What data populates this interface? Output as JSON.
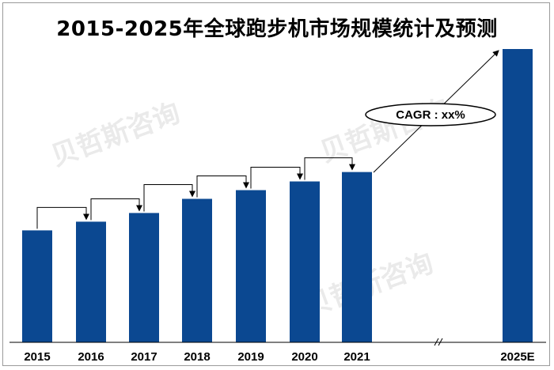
{
  "chart_data": {
    "type": "bar",
    "title": "2015-2025年全球跑步机市场规模统计及预测",
    "categories": [
      "2015",
      "2016",
      "2017",
      "2018",
      "2019",
      "2020",
      "2021",
      "2025E"
    ],
    "values": [
      142,
      153,
      164,
      182,
      193,
      204,
      216,
      372
    ],
    "bar_color": "#0b4891",
    "axis_break_between": [
      "2021",
      "2025E"
    ],
    "annotation": "CAGR : xx%",
    "watermark": "贝哲斯咨询",
    "grid": false,
    "legend": "none"
  }
}
